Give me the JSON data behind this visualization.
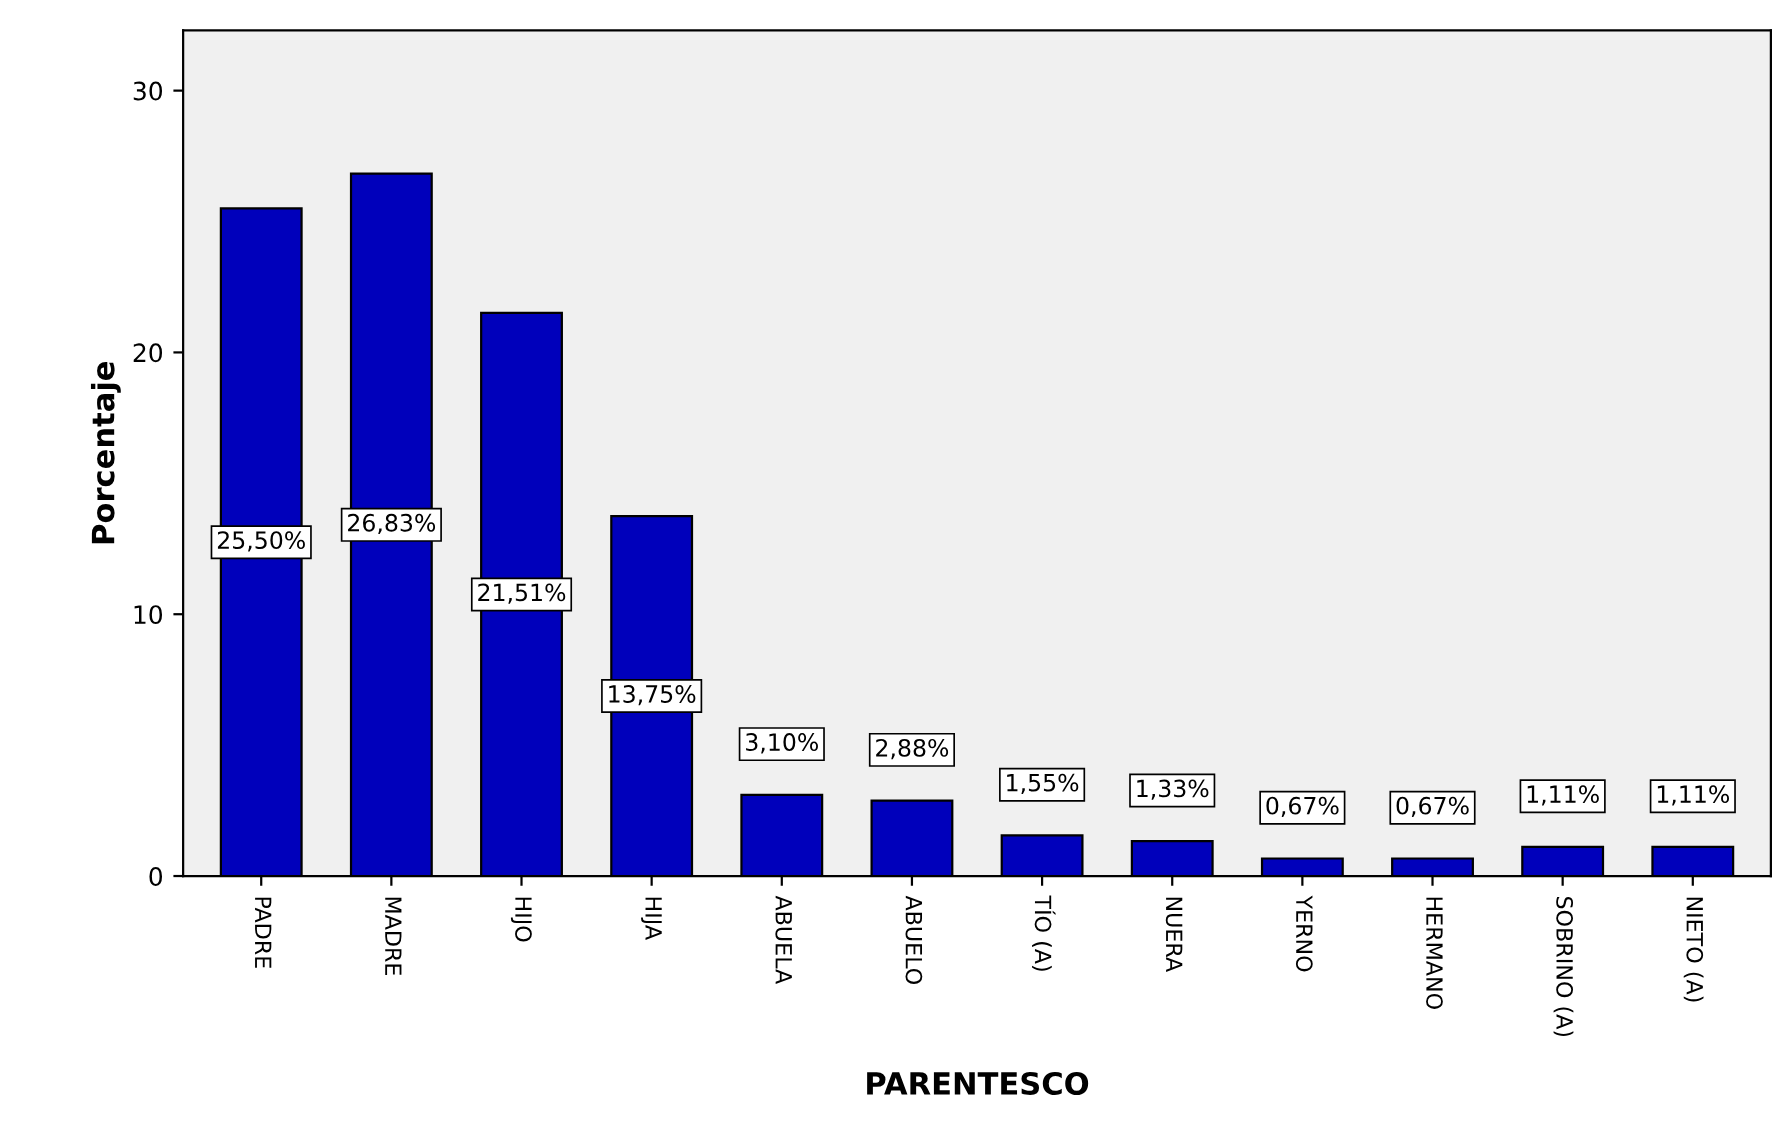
{
  "chart_data": {
    "type": "bar",
    "xlabel": "PARENTESCO",
    "ylabel": "Porcentaje",
    "categories": [
      "PADRE",
      "MADRE",
      "HIJO",
      "HIJA",
      "ABUELA",
      "ABUELO",
      "TÍO (A)",
      "NUERA",
      "YERNO",
      "HERMANO",
      "SOBRINO (A)",
      "NIETO (A)"
    ],
    "values": [
      25.5,
      26.83,
      21.51,
      13.75,
      3.1,
      2.88,
      1.55,
      1.33,
      0.67,
      0.67,
      1.11,
      1.11
    ],
    "value_labels": [
      "25,50%",
      "26,83%",
      "21,51%",
      "13,75%",
      "3,10%",
      "2,88%",
      "1,55%",
      "1,33%",
      "0,67%",
      "0,67%",
      "1,11%",
      "1,11%"
    ],
    "color": "#0000bb",
    "ylim": [
      0,
      32.3
    ],
    "yticks": [
      0,
      10,
      20,
      30
    ],
    "grid": false,
    "legend": false
  }
}
